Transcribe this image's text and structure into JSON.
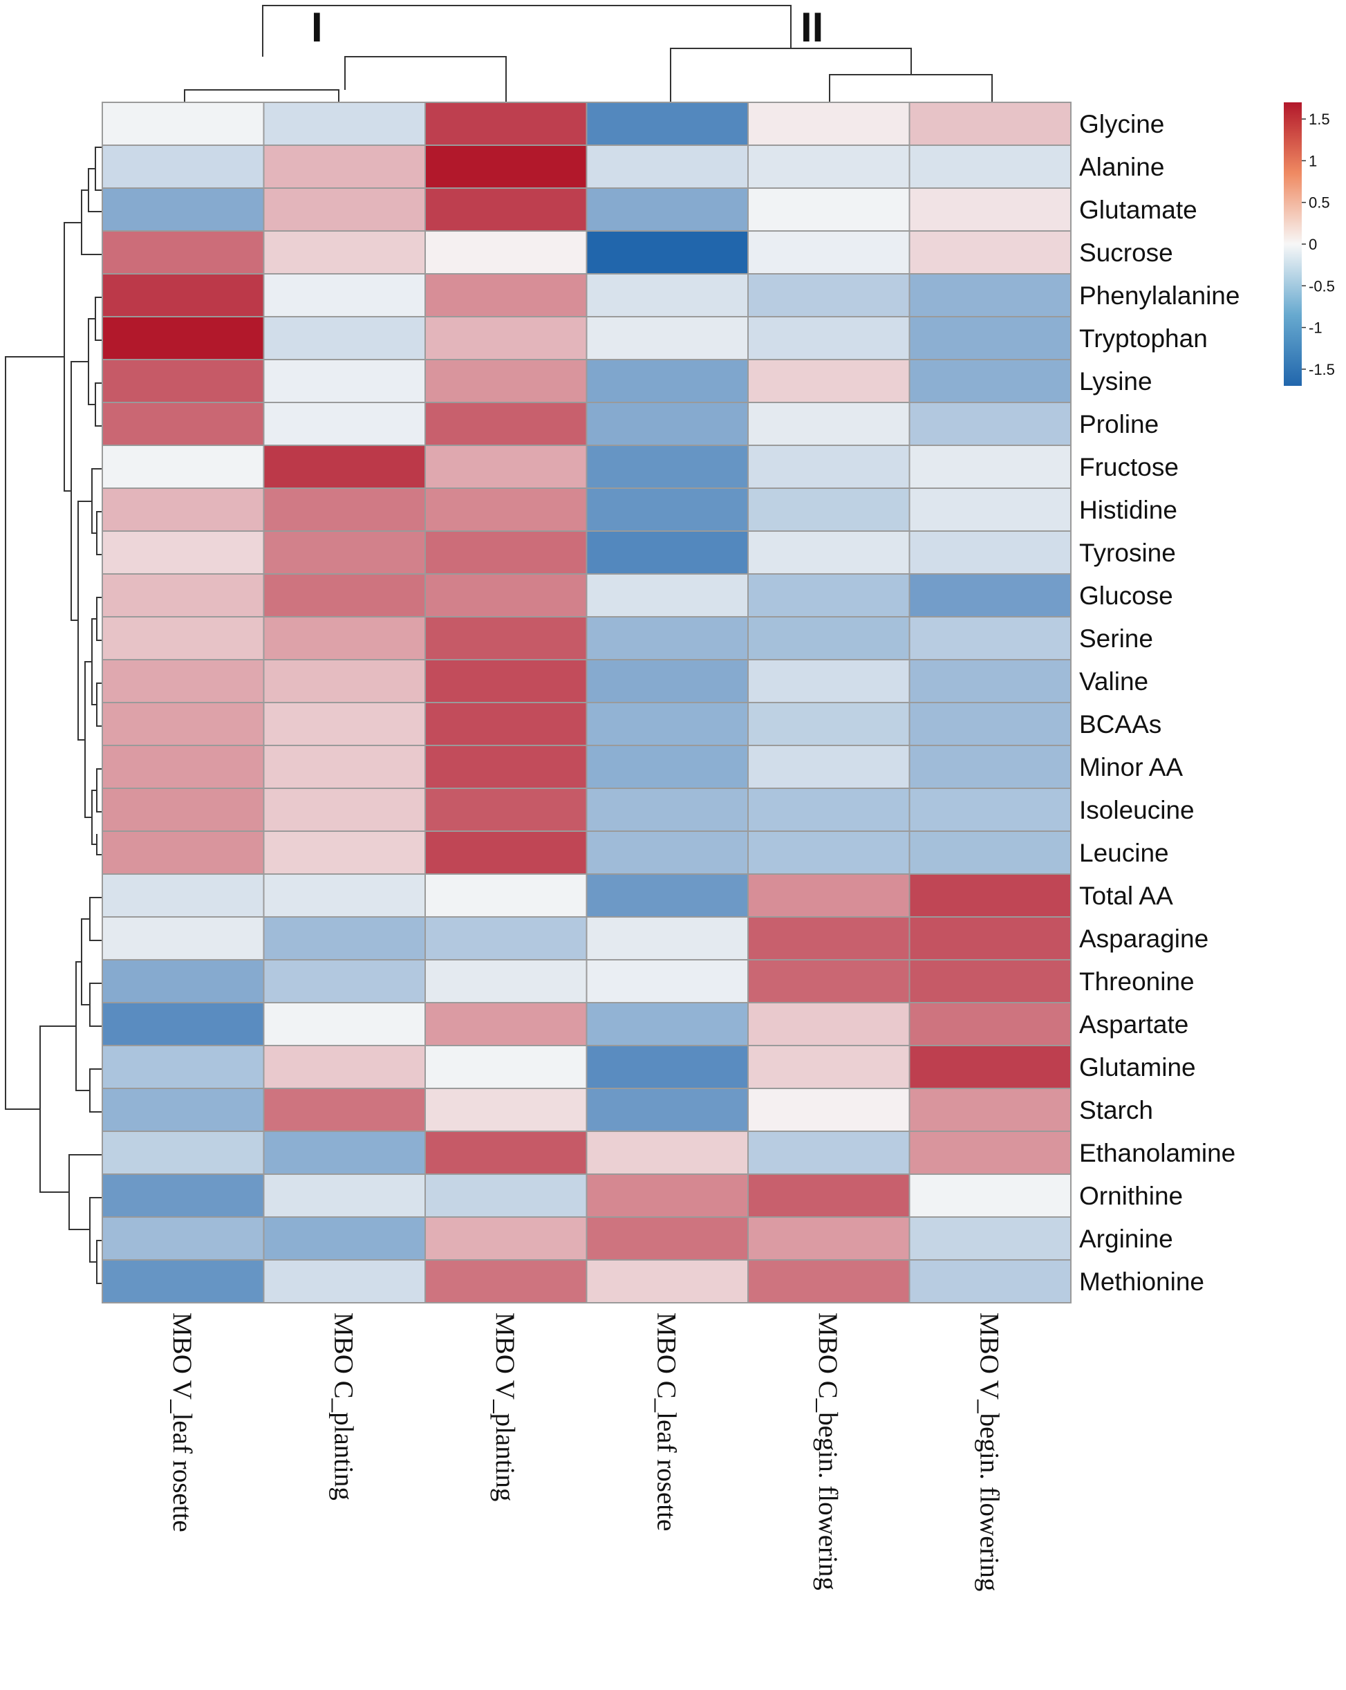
{
  "chart_data": {
    "type": "heatmap",
    "title": "",
    "rows": [
      "Glycine",
      "Alanine",
      "Glutamate",
      "Sucrose",
      "Phenylalanine",
      "Tryptophan",
      "Lysine",
      "Proline",
      "Fructose",
      "Histidine",
      "Tyrosine",
      "Glucose",
      "Serine",
      "Valine",
      "BCAAs",
      "Minor AA",
      "Isoleucine",
      "Leucine",
      "Total AA",
      "Asparagine",
      "Threonine",
      "Aspartate",
      "Glutamine",
      "Starch",
      "Ethanolamine",
      "Ornithine",
      "Arginine",
      "Methionine"
    ],
    "columns": [
      "MBO V_leaf rosette",
      "MBO C_planting",
      "MBO V_planting",
      "MBO C_leaf rosette",
      "MBO C_begin. flowering",
      "MBO V_begin. flowering"
    ],
    "column_clusters": [
      "I",
      "II"
    ],
    "values": [
      [
        -0.05,
        -0.3,
        1.4,
        -1.3,
        0.1,
        0.4
      ],
      [
        -0.35,
        0.5,
        1.7,
        -0.3,
        -0.2,
        -0.25
      ],
      [
        -0.9,
        0.5,
        1.4,
        -0.9,
        -0.05,
        0.15
      ],
      [
        1.05,
        0.3,
        0.05,
        -1.7,
        -0.1,
        0.25
      ],
      [
        1.45,
        -0.1,
        0.8,
        -0.25,
        -0.5,
        -0.8
      ],
      [
        1.7,
        -0.3,
        0.5,
        -0.15,
        -0.3,
        -0.85
      ],
      [
        1.2,
        -0.1,
        0.75,
        -0.95,
        0.3,
        -0.85
      ],
      [
        1.1,
        -0.1,
        1.15,
        -0.9,
        -0.15,
        -0.55
      ],
      [
        -0.05,
        1.45,
        0.6,
        -1.15,
        -0.3,
        -0.15
      ],
      [
        0.5,
        0.95,
        0.85,
        -1.15,
        -0.45,
        -0.2
      ],
      [
        0.25,
        0.9,
        1.05,
        -1.3,
        -0.2,
        -0.3
      ],
      [
        0.45,
        1.0,
        0.9,
        -0.25,
        -0.6,
        -1.05
      ],
      [
        0.4,
        0.65,
        1.2,
        -0.75,
        -0.65,
        -0.5
      ],
      [
        0.6,
        0.45,
        1.3,
        -0.9,
        -0.3,
        -0.7
      ],
      [
        0.65,
        0.35,
        1.3,
        -0.8,
        -0.45,
        -0.7
      ],
      [
        0.7,
        0.35,
        1.3,
        -0.85,
        -0.3,
        -0.7
      ],
      [
        0.75,
        0.35,
        1.2,
        -0.7,
        -0.6,
        -0.6
      ],
      [
        0.75,
        0.3,
        1.35,
        -0.7,
        -0.6,
        -0.65
      ],
      [
        -0.25,
        -0.2,
        -0.05,
        -1.1,
        0.8,
        1.35
      ],
      [
        -0.15,
        -0.7,
        -0.55,
        -0.15,
        1.15,
        1.25
      ],
      [
        -0.9,
        -0.55,
        -0.15,
        -0.1,
        1.1,
        1.2
      ],
      [
        -1.25,
        -0.05,
        0.7,
        -0.8,
        0.35,
        1.0
      ],
      [
        -0.6,
        0.35,
        -0.05,
        -1.25,
        0.3,
        1.4
      ],
      [
        -0.8,
        1.0,
        0.2,
        -1.1,
        0.05,
        0.75
      ],
      [
        -0.45,
        -0.85,
        1.2,
        0.3,
        -0.5,
        0.75
      ],
      [
        -1.1,
        -0.25,
        -0.4,
        0.85,
        1.15,
        -0.05
      ],
      [
        -0.7,
        -0.85,
        0.55,
        1.0,
        0.7,
        -0.4
      ],
      [
        -1.15,
        -0.3,
        1.0,
        0.3,
        1.0,
        -0.5
      ]
    ],
    "color_scale": {
      "min": -1.7,
      "max": 1.7,
      "low_color": "#2166ac",
      "mid_color": "#f7f7f7",
      "high_color": "#b2182b",
      "ticks": [
        "1.5",
        "1",
        "0.5",
        "0",
        "-0.5",
        "-1",
        "-1.5"
      ],
      "tick_values": [
        1.5,
        1,
        0.5,
        0,
        -0.5,
        -1,
        -1.5
      ]
    }
  }
}
